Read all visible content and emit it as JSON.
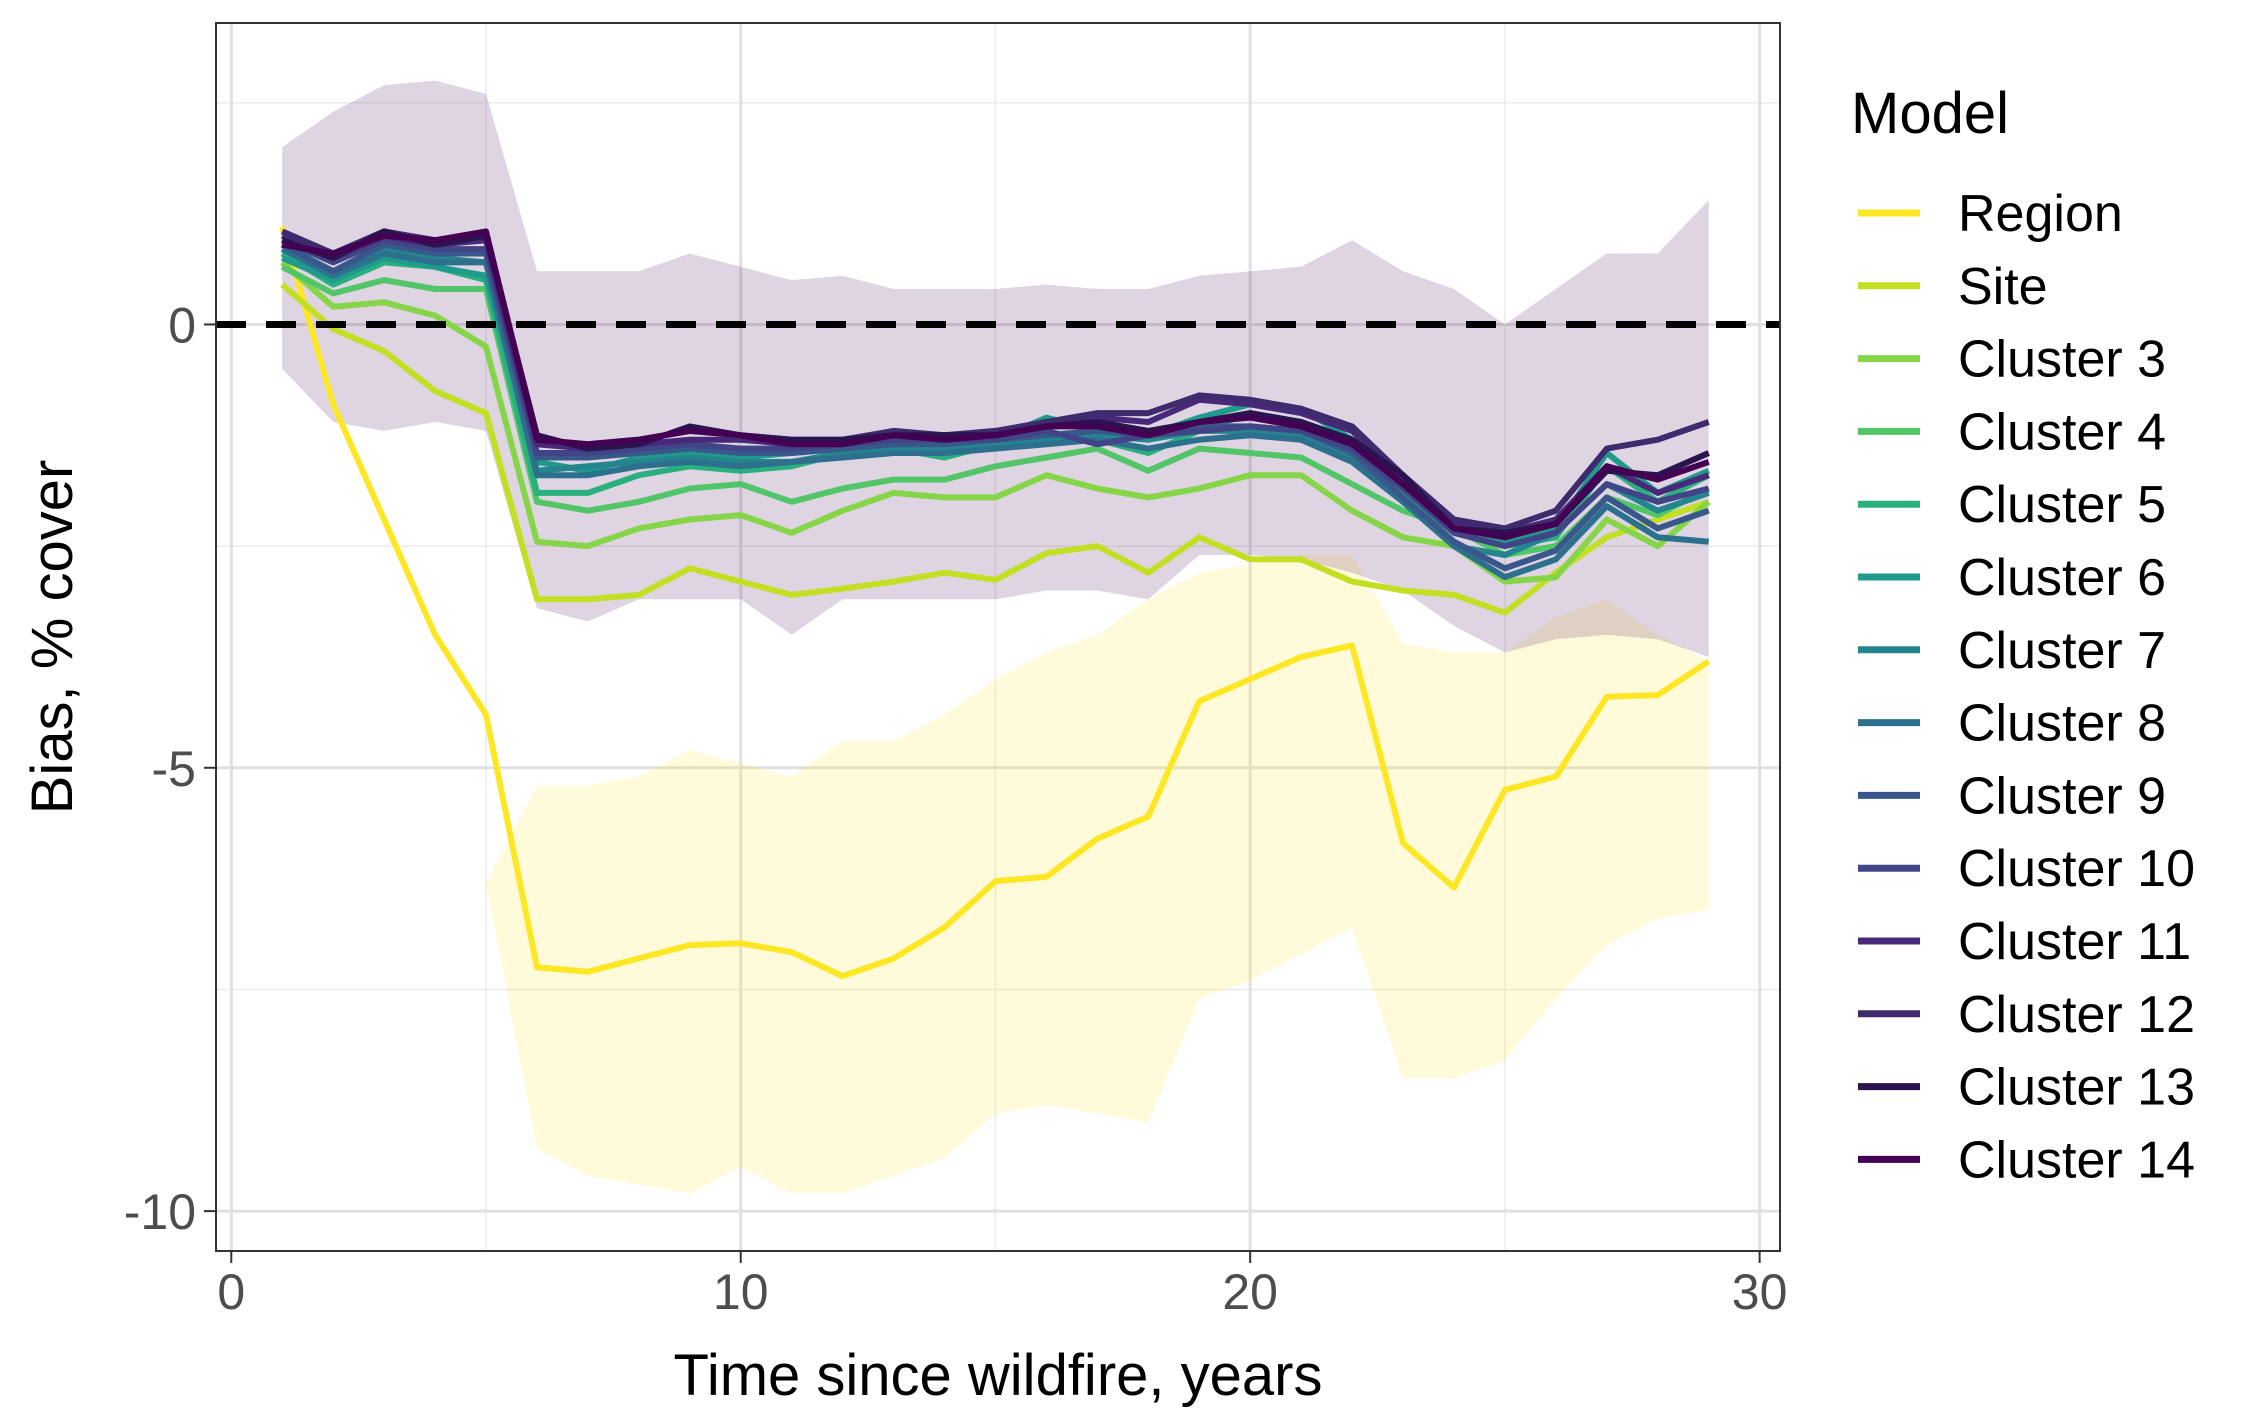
{
  "chart_data": {
    "type": "line",
    "title": "",
    "xlabel": "Time since wildfire, years",
    "ylabel": "Bias, % cover",
    "xlim": [
      -0.3,
      30.4
    ],
    "ylim": [
      -10.45,
      3.4
    ],
    "xticks": [
      0,
      10,
      20,
      30
    ],
    "yticks": [
      0,
      -5,
      -10
    ],
    "ytick_labels": [
      "0",
      "-5",
      "-10"
    ],
    "grid": true,
    "reference_line": {
      "y": 0,
      "style": "dashed",
      "color": "#000000"
    },
    "legend": {
      "title": "Model",
      "position": "right"
    },
    "x": [
      1,
      2,
      3,
      4,
      5,
      6,
      7,
      8,
      9,
      10,
      11,
      12,
      13,
      14,
      15,
      16,
      17,
      18,
      19,
      20,
      21,
      22,
      23,
      24,
      25,
      26,
      27,
      28,
      29
    ],
    "bands": [
      {
        "series": "Region",
        "color": "#FDE725",
        "upper": [
          -0.4,
          -2.9,
          -4.2,
          -5.4,
          -6.3,
          -5.2,
          -5.2,
          -5.1,
          -4.8,
          -4.95,
          -5.1,
          -4.7,
          -4.7,
          -4.4,
          -4.0,
          -3.7,
          -3.5,
          -3.1,
          -2.8,
          -2.7,
          -2.6,
          -2.6,
          -3.6,
          -3.7,
          -3.7,
          -3.3,
          -3.1,
          -3.5,
          -3.8
        ],
        "lower": [
          -0.4,
          -2.9,
          -4.2,
          -5.4,
          -6.3,
          -9.3,
          -9.6,
          -9.7,
          -9.8,
          -9.5,
          -9.8,
          -9.8,
          -9.6,
          -9.4,
          -8.9,
          -8.8,
          -8.9,
          -9.0,
          -7.6,
          -7.4,
          -7.1,
          -6.8,
          -8.5,
          -8.5,
          -8.3,
          -7.6,
          -7.0,
          -6.7,
          -6.6
        ]
      },
      {
        "series": "Cluster 14",
        "color": "#440154",
        "upper": [
          2.0,
          2.4,
          2.7,
          2.75,
          2.6,
          0.6,
          0.6,
          0.6,
          0.8,
          0.65,
          0.5,
          0.55,
          0.4,
          0.4,
          0.4,
          0.45,
          0.4,
          0.4,
          0.55,
          0.6,
          0.65,
          0.95,
          0.6,
          0.4,
          0.0,
          0.4,
          0.8,
          0.8,
          1.4
        ],
        "lower": [
          -0.5,
          -1.1,
          -1.2,
          -1.1,
          -1.2,
          -3.2,
          -3.35,
          -3.1,
          -3.1,
          -3.1,
          -3.5,
          -3.1,
          -3.1,
          -3.1,
          -3.1,
          -3.0,
          -3.0,
          -3.1,
          -2.6,
          -2.6,
          -2.65,
          -2.8,
          -3.0,
          -3.4,
          -3.7,
          -3.55,
          -3.5,
          -3.55,
          -3.75
        ]
      }
    ],
    "series": [
      {
        "name": "Region",
        "color": "#FDE725",
        "values": [
          1.1,
          -0.9,
          -2.2,
          -3.5,
          -4.4,
          -7.25,
          -7.3,
          -7.15,
          -7.0,
          -6.98,
          -7.08,
          -7.35,
          -7.15,
          -6.8,
          -6.28,
          -6.23,
          -5.8,
          -5.55,
          -4.25,
          -4.0,
          -3.75,
          -3.62,
          -5.85,
          -6.35,
          -5.25,
          -5.1,
          -4.2,
          -4.18,
          -3.8
        ]
      },
      {
        "name": "Site",
        "color": "#C2DF23",
        "values": [
          0.45,
          -0.05,
          -0.3,
          -0.75,
          -1.0,
          -3.1,
          -3.1,
          -3.05,
          -2.75,
          -2.9,
          -3.05,
          -2.98,
          -2.9,
          -2.8,
          -2.88,
          -2.58,
          -2.5,
          -2.8,
          -2.4,
          -2.65,
          -2.65,
          -2.9,
          -3.0,
          -3.05,
          -3.25,
          -2.8,
          -2.4,
          -2.2,
          -2.0
        ]
      },
      {
        "name": "Cluster 3",
        "color": "#86D549",
        "values": [
          0.7,
          0.2,
          0.25,
          0.1,
          -0.25,
          -2.45,
          -2.5,
          -2.3,
          -2.2,
          -2.15,
          -2.35,
          -2.1,
          -1.9,
          -1.95,
          -1.95,
          -1.7,
          -1.85,
          -1.95,
          -1.85,
          -1.7,
          -1.7,
          -2.1,
          -2.4,
          -2.5,
          -2.9,
          -2.85,
          -2.2,
          -2.5,
          -2.0
        ]
      },
      {
        "name": "Cluster 4",
        "color": "#52C569",
        "values": [
          0.65,
          0.35,
          0.5,
          0.4,
          0.4,
          -2.0,
          -2.1,
          -2.0,
          -1.85,
          -1.8,
          -2.0,
          -1.85,
          -1.75,
          -1.75,
          -1.6,
          -1.5,
          -1.4,
          -1.65,
          -1.4,
          -1.45,
          -1.5,
          -1.8,
          -2.1,
          -2.3,
          -2.6,
          -2.5,
          -1.95,
          -2.15,
          -1.85
        ]
      },
      {
        "name": "Cluster 5",
        "color": "#2AB07F",
        "values": [
          0.8,
          0.45,
          0.7,
          0.65,
          0.5,
          -1.9,
          -1.9,
          -1.7,
          -1.6,
          -1.65,
          -1.6,
          -1.45,
          -1.4,
          -1.5,
          -1.35,
          -1.25,
          -1.3,
          -1.45,
          -1.2,
          -1.0,
          -1.1,
          -1.5,
          -1.9,
          -2.35,
          -2.5,
          -2.4,
          -1.6,
          -2.0,
          -1.7
        ]
      },
      {
        "name": "Cluster 6",
        "color": "#1E9B8A",
        "values": [
          0.75,
          0.5,
          0.75,
          0.65,
          0.55,
          -1.55,
          -1.65,
          -1.5,
          -1.45,
          -1.5,
          -1.45,
          -1.4,
          -1.35,
          -1.3,
          -1.3,
          -1.05,
          -1.2,
          -1.25,
          -1.05,
          -0.9,
          -0.95,
          -1.3,
          -1.8,
          -2.3,
          -2.45,
          -2.3,
          -1.45,
          -1.9,
          -1.65
        ]
      },
      {
        "name": "Cluster 7",
        "color": "#25858E",
        "values": [
          0.9,
          0.6,
          0.85,
          0.75,
          0.7,
          -1.65,
          -1.6,
          -1.55,
          -1.5,
          -1.55,
          -1.55,
          -1.45,
          -1.4,
          -1.4,
          -1.35,
          -1.3,
          -1.25,
          -1.3,
          -1.2,
          -1.2,
          -1.25,
          -1.5,
          -2.0,
          -2.5,
          -2.6,
          -2.35,
          -1.8,
          -2.1,
          -1.9
        ]
      },
      {
        "name": "Cluster 8",
        "color": "#2D708E",
        "values": [
          0.85,
          0.55,
          0.8,
          0.7,
          0.7,
          -1.7,
          -1.7,
          -1.6,
          -1.55,
          -1.6,
          -1.55,
          -1.5,
          -1.45,
          -1.45,
          -1.4,
          -1.35,
          -1.3,
          -1.4,
          -1.3,
          -1.25,
          -1.3,
          -1.55,
          -2.0,
          -2.5,
          -2.85,
          -2.65,
          -2.05,
          -2.4,
          -2.45
        ]
      },
      {
        "name": "Cluster 9",
        "color": "#38588C",
        "values": [
          0.9,
          0.6,
          0.9,
          0.8,
          0.8,
          -1.5,
          -1.5,
          -1.45,
          -1.4,
          -1.45,
          -1.45,
          -1.4,
          -1.35,
          -1.35,
          -1.3,
          -1.25,
          -1.2,
          -1.25,
          -1.15,
          -1.15,
          -1.2,
          -1.45,
          -1.95,
          -2.45,
          -2.75,
          -2.55,
          -1.95,
          -2.3,
          -2.1
        ]
      },
      {
        "name": "Cluster 10",
        "color": "#414487",
        "values": [
          0.95,
          0.7,
          0.95,
          0.85,
          0.85,
          -1.45,
          -1.45,
          -1.4,
          -1.35,
          -1.4,
          -1.4,
          -1.35,
          -1.3,
          -1.3,
          -1.3,
          -1.2,
          -1.35,
          -1.25,
          -1.2,
          -1.15,
          -1.2,
          -1.4,
          -1.85,
          -2.35,
          -2.5,
          -2.35,
          -1.8,
          -2.0,
          -1.85
        ]
      },
      {
        "name": "Cluster 11",
        "color": "#482878",
        "values": [
          1.0,
          0.75,
          1.0,
          0.9,
          0.95,
          -1.35,
          -1.4,
          -1.35,
          -1.3,
          -1.3,
          -1.35,
          -1.3,
          -1.25,
          -1.25,
          -1.25,
          -1.15,
          -1.05,
          -1.1,
          -0.85,
          -0.9,
          -1.0,
          -1.2,
          -1.75,
          -2.25,
          -2.35,
          -2.2,
          -1.6,
          -1.9,
          -1.7
        ]
      },
      {
        "name": "Cluster 12",
        "color": "#3E2A6D",
        "values": [
          1.05,
          0.8,
          1.05,
          0.95,
          1.0,
          -1.3,
          -1.35,
          -1.3,
          -1.2,
          -1.25,
          -1.3,
          -1.3,
          -1.2,
          -1.25,
          -1.2,
          -1.1,
          -1.0,
          -1.0,
          -0.8,
          -0.85,
          -0.95,
          -1.15,
          -1.7,
          -2.2,
          -2.3,
          -2.1,
          -1.4,
          -1.3,
          -1.1
        ]
      },
      {
        "name": "Cluster 13",
        "color": "#2B1350",
        "values": [
          0.95,
          0.75,
          1.05,
          0.9,
          1.0,
          -1.25,
          -1.4,
          -1.35,
          -1.15,
          -1.25,
          -1.3,
          -1.3,
          -1.25,
          -1.25,
          -1.25,
          -1.15,
          -1.1,
          -1.2,
          -1.1,
          -1.0,
          -1.1,
          -1.3,
          -1.7,
          -2.3,
          -2.35,
          -2.25,
          -1.65,
          -1.7,
          -1.45
        ]
      },
      {
        "name": "Cluster 14",
        "color": "#440154",
        "values": [
          0.9,
          0.8,
          1.0,
          0.95,
          1.05,
          -1.3,
          -1.35,
          -1.3,
          -1.2,
          -1.25,
          -1.35,
          -1.35,
          -1.25,
          -1.3,
          -1.25,
          -1.15,
          -1.15,
          -1.25,
          -1.1,
          -1.05,
          -1.15,
          -1.35,
          -1.8,
          -2.3,
          -2.4,
          -2.25,
          -1.6,
          -1.75,
          -1.55
        ]
      }
    ]
  }
}
